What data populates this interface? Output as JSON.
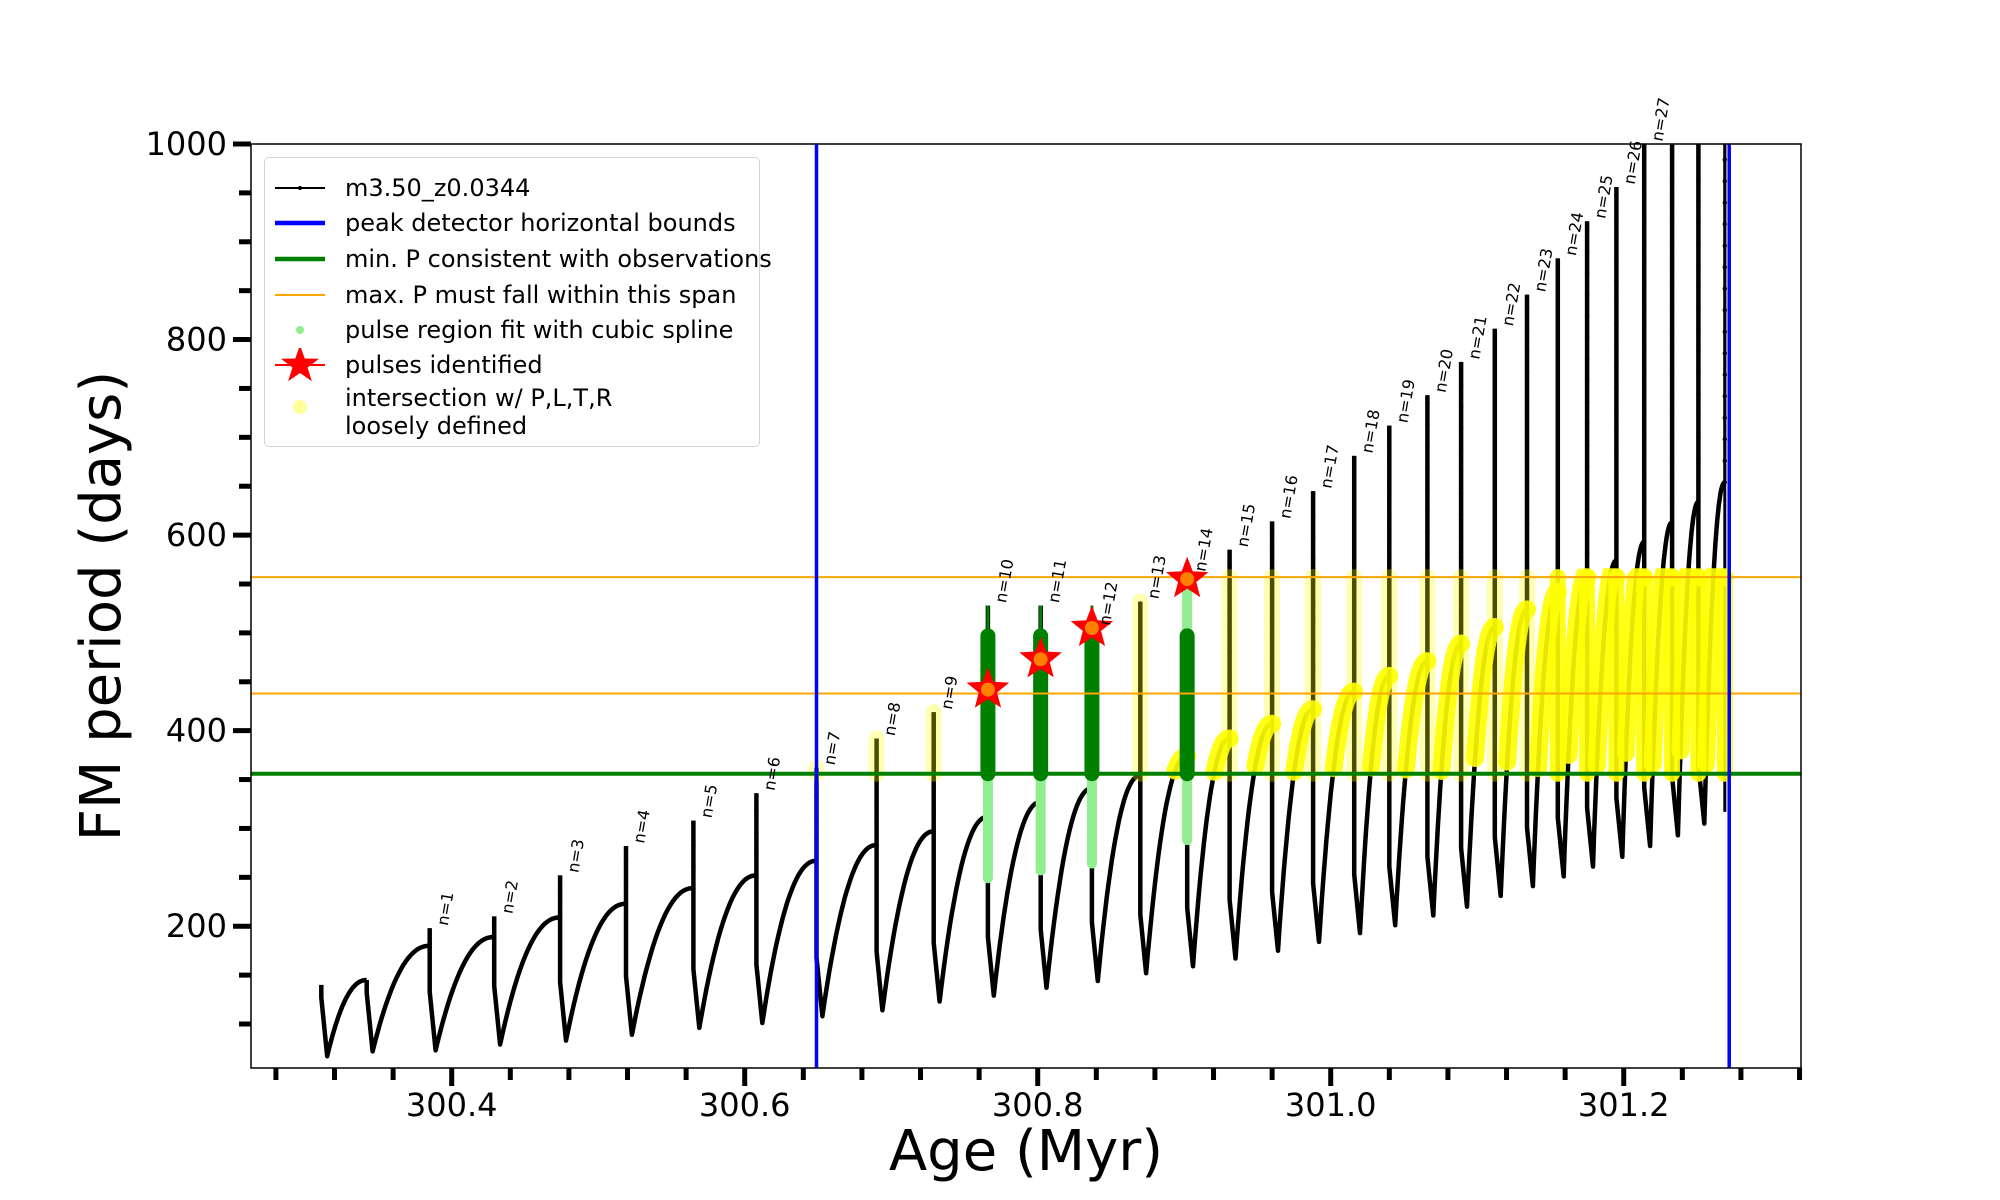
{
  "chart_data": {
    "type": "line",
    "title": "",
    "xlabel": "Age (Myr)",
    "ylabel": "FM period (days)",
    "xlim": [
      300.263,
      301.321
    ],
    "ylim": [
      55,
      1000
    ],
    "x_ticks": [
      300.4,
      300.6,
      300.8,
      301.0,
      301.2
    ],
    "x_tick_labels": [
      "300.4",
      "300.6",
      "300.8",
      "301.0",
      "301.2"
    ],
    "x_minor_step": 0.04,
    "y_ticks": [
      200,
      400,
      600,
      800,
      1000
    ],
    "y_tick_labels": [
      "200",
      "400",
      "600",
      "800",
      "1000"
    ],
    "y_minor_step": 50,
    "grid": false,
    "legend_position": "upper-left",
    "legend": [
      {
        "label": "m3.50_z0.0344",
        "kind": "line-marker",
        "color": "#000000"
      },
      {
        "label": "peak detector horizontal bounds",
        "kind": "line-thick",
        "color": "#0000ff"
      },
      {
        "label": "min. P consistent with observations",
        "kind": "line-thick",
        "color": "#008000"
      },
      {
        "label": "max. P must fall within this span",
        "kind": "line-thin",
        "color": "#ffa500"
      },
      {
        "label": "pulse region fit with cubic spline",
        "kind": "dot",
        "color": "#90ee90"
      },
      {
        "label": "pulses identified",
        "kind": "star",
        "color": "#ff0000"
      },
      {
        "label": "intersection w/ P,L,T,R\nloosely defined",
        "label_lines": [
          "intersection w/ P,L,T,R",
          "loosely defined"
        ],
        "kind": "dot-large",
        "color": "#ffff99"
      }
    ],
    "reference_lines": {
      "peak_detector_bounds_x": [
        300.649,
        301.272
      ],
      "min_P": 356,
      "max_P_span": [
        438,
        557
      ]
    },
    "colors": {
      "track": "#000000",
      "bounds": "#0000ff",
      "minP": "#008000",
      "maxP": "#ffa500",
      "spline": "#90ee90",
      "spline_dark": "#008000",
      "star": "#ff0000",
      "intersection": "#ffff00"
    },
    "initial_segment": {
      "start_age": 300.311,
      "start_P": 140,
      "trough_P": 67,
      "end_age": 300.342,
      "end_P": 145
    },
    "pulses": [
      {
        "n": 1,
        "label": "n=1",
        "age": 300.385,
        "hump_P": 180,
        "peak_P": 198,
        "trough_P": 73
      },
      {
        "n": 2,
        "label": "n=2",
        "age": 300.429,
        "hump_P": 189,
        "peak_P": 210,
        "trough_P": 79
      },
      {
        "n": 3,
        "label": "n=3",
        "age": 300.474,
        "hump_P": 209,
        "peak_P": 252,
        "trough_P": 83
      },
      {
        "n": 4,
        "label": "n=4",
        "age": 300.519,
        "hump_P": 223,
        "peak_P": 282,
        "trough_P": 89
      },
      {
        "n": 5,
        "label": "n=5",
        "age": 300.565,
        "hump_P": 239,
        "peak_P": 308,
        "trough_P": 96
      },
      {
        "n": 6,
        "label": "n=6",
        "age": 300.608,
        "hump_P": 252,
        "peak_P": 336,
        "trough_P": 101
      },
      {
        "n": 7,
        "label": "n=7",
        "age": 300.649,
        "hump_P": 267,
        "peak_P": 362,
        "trough_P": 108
      },
      {
        "n": 8,
        "label": "n=8",
        "age": 300.69,
        "hump_P": 283,
        "peak_P": 392,
        "trough_P": 114
      },
      {
        "n": 9,
        "label": "n=9",
        "age": 300.729,
        "hump_P": 297,
        "peak_P": 419,
        "trough_P": 123
      },
      {
        "n": 10,
        "label": "n=10",
        "age": 300.766,
        "hump_P": 312,
        "peak_P": 528,
        "trough_P": 129,
        "star_P": 442
      },
      {
        "n": 11,
        "label": "n=11",
        "age": 300.802,
        "hump_P": 327,
        "peak_P": 528,
        "trough_P": 137,
        "star_P": 473
      },
      {
        "n": 12,
        "label": "n=12",
        "age": 300.837,
        "hump_P": 341,
        "peak_P": 505,
        "trough_P": 144,
        "star_P": 505
      },
      {
        "n": 13,
        "label": "n=13",
        "age": 300.87,
        "hump_P": 354,
        "peak_P": 532,
        "trough_P": 152
      },
      {
        "n": 14,
        "label": "n=14",
        "age": 300.902,
        "hump_P": 374,
        "peak_P": 560,
        "trough_P": 159,
        "star_P": 555
      },
      {
        "n": 15,
        "label": "n=15",
        "age": 300.931,
        "hump_P": 392,
        "peak_P": 585,
        "trough_P": 167
      },
      {
        "n": 16,
        "label": "n=16",
        "age": 300.96,
        "hump_P": 407,
        "peak_P": 614,
        "trough_P": 175
      },
      {
        "n": 17,
        "label": "n=17",
        "age": 300.988,
        "hump_P": 422,
        "peak_P": 645,
        "trough_P": 184
      },
      {
        "n": 18,
        "label": "n=18",
        "age": 301.016,
        "hump_P": 440,
        "peak_P": 681,
        "trough_P": 193
      },
      {
        "n": 19,
        "label": "n=19",
        "age": 301.04,
        "hump_P": 456,
        "peak_P": 712,
        "trough_P": 201
      },
      {
        "n": 20,
        "label": "n=20",
        "age": 301.066,
        "hump_P": 471,
        "peak_P": 743,
        "trough_P": 211
      },
      {
        "n": 21,
        "label": "n=21",
        "age": 301.089,
        "hump_P": 489,
        "peak_P": 777,
        "trough_P": 220
      },
      {
        "n": 22,
        "label": "n=22",
        "age": 301.112,
        "hump_P": 506,
        "peak_P": 811,
        "trough_P": 231
      },
      {
        "n": 23,
        "label": "n=23",
        "age": 301.134,
        "hump_P": 524,
        "peak_P": 846,
        "trough_P": 241
      },
      {
        "n": 24,
        "label": "n=24",
        "age": 301.155,
        "hump_P": 542,
        "peak_P": 883,
        "trough_P": 251
      },
      {
        "n": 25,
        "label": "n=25",
        "age": 301.175,
        "hump_P": 560,
        "peak_P": 921,
        "trough_P": 261
      },
      {
        "n": 26,
        "label": "n=26",
        "age": 301.195,
        "hump_P": 574,
        "peak_P": 956,
        "trough_P": 271
      },
      {
        "n": 27,
        "label": "n=27",
        "age": 301.214,
        "hump_P": 593,
        "peak_P": 1000,
        "trough_P": 282
      },
      {
        "n": 28,
        "label": "",
        "age": 301.233,
        "hump_P": 613,
        "peak_P": 1000,
        "trough_P": 293
      },
      {
        "n": 29,
        "label": "",
        "age": 301.251,
        "hump_P": 634,
        "peak_P": 1000,
        "trough_P": 305
      },
      {
        "n": 30,
        "label": "",
        "age": 301.269,
        "hump_P": 654,
        "peak_P": 1000,
        "trough_P": 317
      }
    ]
  }
}
